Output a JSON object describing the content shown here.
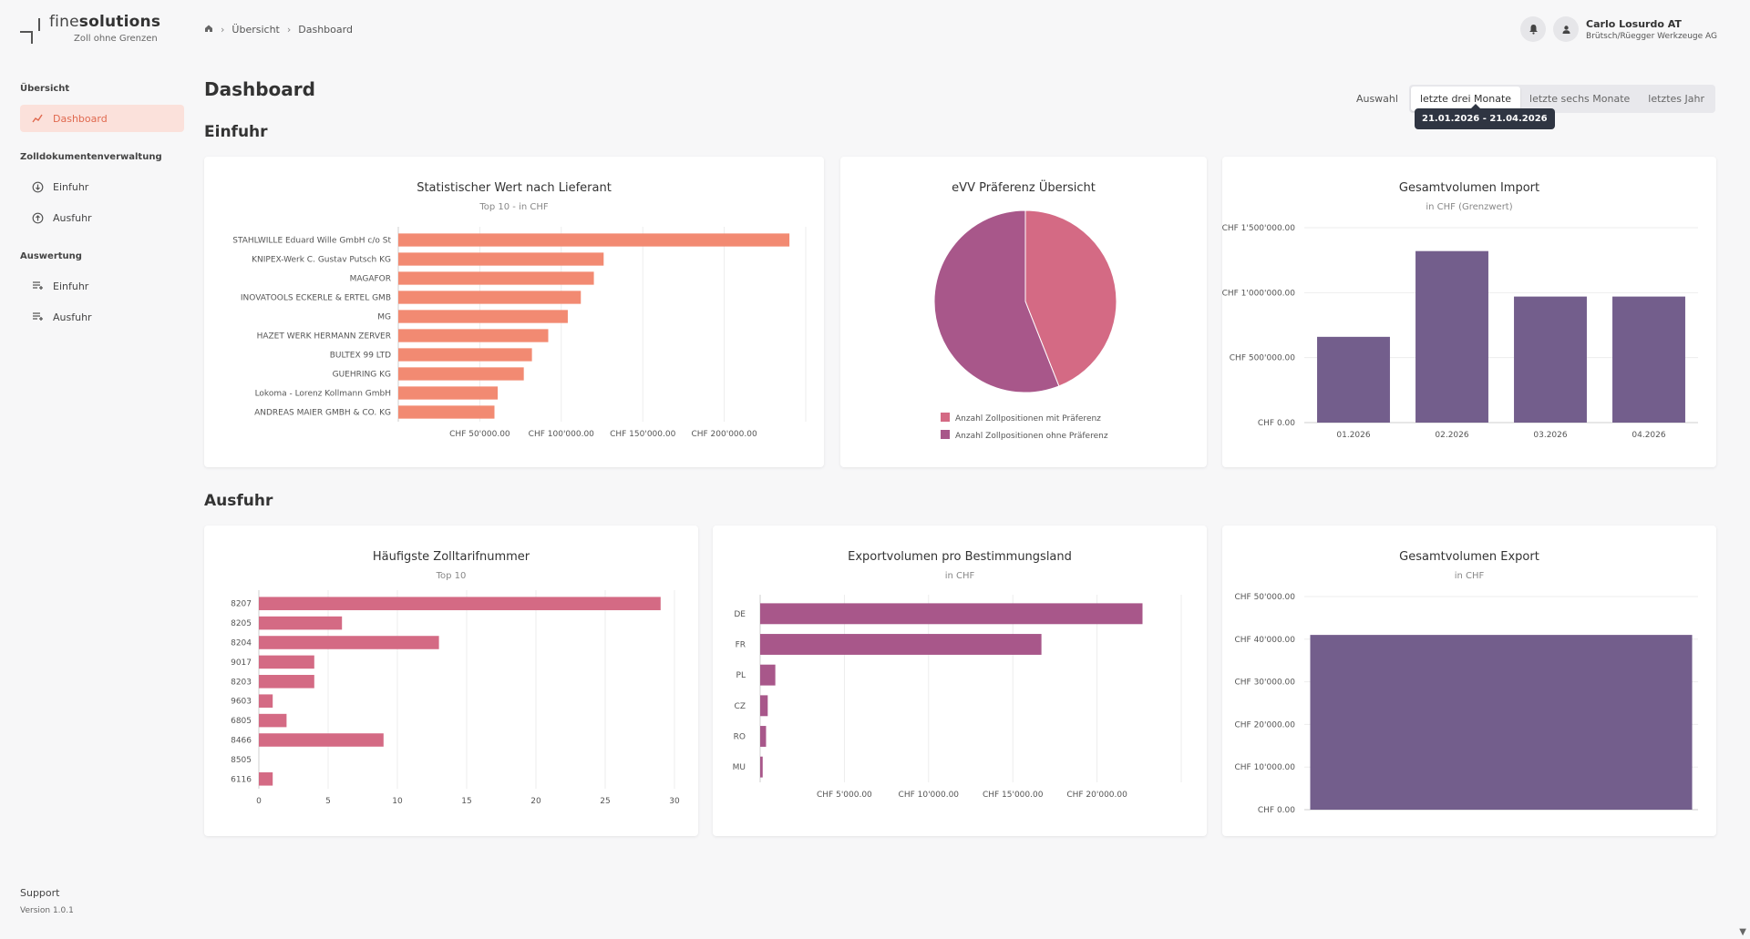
{
  "logo": {
    "name_light": "fine",
    "name_bold": "solutions",
    "tagline": "Zoll ohne Grenzen"
  },
  "sidebar": {
    "sections": [
      {
        "title": "Übersicht",
        "items": [
          {
            "label": "Dashboard",
            "icon": "trend-icon",
            "active": true
          }
        ]
      },
      {
        "title": "Zolldokumentenverwaltung",
        "items": [
          {
            "label": "Einfuhr",
            "icon": "download-cloud-icon"
          },
          {
            "label": "Ausfuhr",
            "icon": "upload-cloud-icon"
          }
        ]
      },
      {
        "title": "Auswertung",
        "items": [
          {
            "label": "Einfuhr",
            "icon": "list-filter-icon"
          },
          {
            "label": "Ausfuhr",
            "icon": "list-filter-icon"
          }
        ]
      }
    ],
    "support": "Support",
    "version": "Version 1.0.1"
  },
  "breadcrumb": {
    "items": [
      "Übersicht",
      "Dashboard"
    ]
  },
  "user": {
    "name": "Carlo Losurdo AT",
    "company": "Brütsch/Rüegger Werkzeuge AG"
  },
  "page": {
    "title": "Dashboard"
  },
  "range": {
    "label": "Auswahl",
    "options": [
      "letzte drei Monate",
      "letzte sechs Monate",
      "letztes Jahr"
    ],
    "selected": "letzte drei Monate",
    "tooltip": "21.01.2026 - 21.04.2026"
  },
  "sections": {
    "import": "Einfuhr",
    "export": "Ausfuhr"
  },
  "colors": {
    "salmon": "#f28a72",
    "rose": "#d46a84",
    "mauve": "#a8578a",
    "purple": "#735e8c",
    "accent": "#e0694f"
  },
  "chart_data": [
    {
      "id": "supplier",
      "type": "bar",
      "orientation": "horizontal",
      "title": "Statistischer Wert nach Lieferant",
      "subtitle": "Top 10 - in CHF",
      "categories": [
        "STAHLWILLE Eduard Wille GmbH c/o St",
        "KNIPEX-Werk C. Gustav Putsch KG",
        "MAGAFOR",
        "INOVATOOLS ECKERLE & ERTEL GMB",
        "MG",
        "HAZET WERK HERMANN ZERVER",
        "BULTEX 99 LTD",
        "GUEHRING KG",
        "Lokoma - Lorenz Kollmann GmbH",
        "ANDREAS MAIER GMBH & CO. KG"
      ],
      "values": [
        240000,
        126000,
        120000,
        112000,
        104000,
        92000,
        82000,
        77000,
        61000,
        59000
      ],
      "xlim": [
        0,
        250000
      ],
      "ticks": [
        50000,
        100000,
        150000,
        200000
      ],
      "tick_labels": [
        "CHF 50'000.00",
        "CHF 100'000.00",
        "CHF 150'000.00",
        "CHF 200'000.00"
      ],
      "color": "#f28a72"
    },
    {
      "id": "preference",
      "type": "pie",
      "title": "eVV Präferenz Übersicht",
      "slices": [
        {
          "label": "Anzahl Zollpositionen mit Präferenz",
          "value": 44,
          "color": "#d46a84"
        },
        {
          "label": "Anzahl Zollpositionen ohne Präferenz",
          "value": 56,
          "color": "#a8578a"
        }
      ]
    },
    {
      "id": "import_volume",
      "type": "bar",
      "orientation": "vertical",
      "title": "Gesamtvolumen Import",
      "subtitle": "in CHF (Grenzwert)",
      "categories": [
        "01.2026",
        "02.2026",
        "03.2026",
        "04.2026"
      ],
      "values": [
        660000,
        1320000,
        970000,
        970000
      ],
      "ylim": [
        0,
        1500000
      ],
      "ticks": [
        0,
        500000,
        1000000,
        1500000
      ],
      "tick_labels": [
        "CHF 0.00",
        "CHF 500'000.00",
        "CHF 1'000'000.00",
        "CHF 1'500'000.00"
      ],
      "color": "#735e8c"
    },
    {
      "id": "tariff",
      "type": "bar",
      "orientation": "horizontal",
      "title": "Häufigste Zolltarifnummer",
      "subtitle": "Top 10",
      "categories": [
        "8207",
        "8205",
        "8204",
        "9017",
        "8203",
        "9603",
        "6805",
        "8466",
        "8505",
        "6116"
      ],
      "values": [
        29,
        6,
        13,
        4,
        4,
        1,
        2,
        9,
        0,
        1
      ],
      "xlim": [
        0,
        30
      ],
      "ticks": [
        0,
        5,
        10,
        15,
        20,
        25,
        30
      ],
      "tick_labels": [
        "0",
        "5",
        "10",
        "15",
        "20",
        "25",
        "30"
      ],
      "color": "#d46a84"
    },
    {
      "id": "export_country",
      "type": "bar",
      "orientation": "horizontal",
      "title": "Exportvolumen pro Bestimmungsland",
      "subtitle": "in CHF",
      "categories": [
        "DE",
        "FR",
        "PL",
        "CZ",
        "RO",
        "MU"
      ],
      "values": [
        22700,
        16700,
        900,
        450,
        350,
        150
      ],
      "xlim": [
        0,
        25000
      ],
      "ticks": [
        5000,
        10000,
        15000,
        20000
      ],
      "tick_labels": [
        "CHF 5'000.00",
        "CHF 10'000.00",
        "CHF 15'000.00",
        "CHF 20'000.00"
      ],
      "color": "#a8578a"
    },
    {
      "id": "export_volume",
      "type": "bar",
      "orientation": "vertical",
      "title": "Gesamtvolumen Export",
      "subtitle": "in CHF",
      "categories": [
        ""
      ],
      "values": [
        41000
      ],
      "ylim": [
        0,
        50000
      ],
      "ticks": [
        0,
        10000,
        20000,
        30000,
        40000,
        50000
      ],
      "tick_labels": [
        "CHF 0.00",
        "CHF 10'000.00",
        "CHF 20'000.00",
        "CHF 30'000.00",
        "CHF 40'000.00",
        "CHF 50'000.00"
      ],
      "color": "#735e8c"
    }
  ]
}
